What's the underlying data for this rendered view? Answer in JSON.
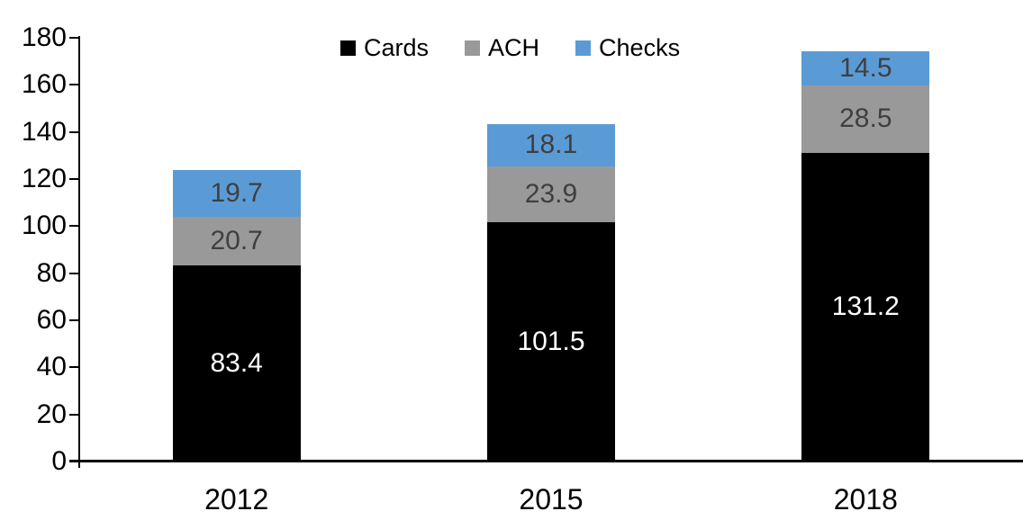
{
  "chart_data": {
    "type": "bar",
    "stacked": true,
    "title": "",
    "categories": [
      "2012",
      "2015",
      "2018"
    ],
    "series": [
      {
        "name": "Cards",
        "color": "#000000",
        "label_color": "#FFFFFF",
        "values": [
          83.4,
          101.5,
          131.2
        ]
      },
      {
        "name": "ACH",
        "color": "#999999",
        "label_color": "#3F3F3F",
        "values": [
          20.7,
          23.9,
          28.5
        ]
      },
      {
        "name": "Checks",
        "color": "#5B9BD5",
        "label_color": "#3F3F3F",
        "values": [
          19.7,
          18.1,
          14.5
        ]
      }
    ],
    "totals": [
      123.8,
      143.5,
      174.2
    ],
    "ylim": [
      0,
      180
    ],
    "ytick_step": 20,
    "ytick_labels": [
      "0",
      "20",
      "40",
      "60",
      "80",
      "100",
      "120",
      "140",
      "160",
      "180"
    ],
    "grid": false,
    "legend_position": "top-center",
    "axis_color": "#000000",
    "xlabel": "",
    "ylabel": ""
  }
}
